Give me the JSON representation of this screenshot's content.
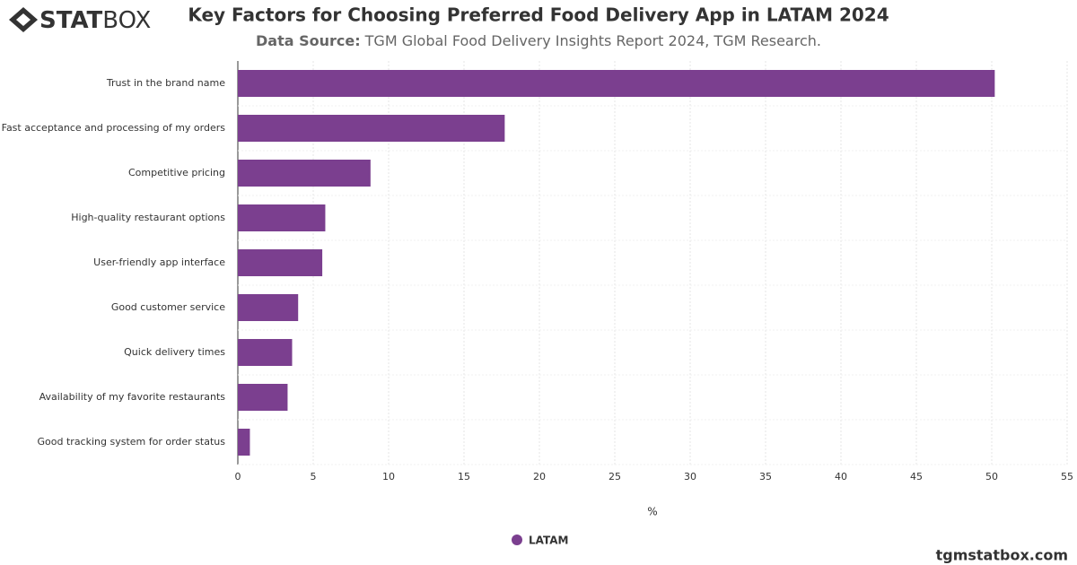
{
  "brand": {
    "bold": "STAT",
    "light": "BOX"
  },
  "footer": "tgmstatbox.com",
  "chart_data": {
    "type": "bar",
    "orientation": "horizontal",
    "title": "Key Factors for Choosing Preferred Food Delivery App in LATAM 2024",
    "source_label": "Data Source:",
    "source": "TGM Global Food Delivery Insights Report 2024, TGM Research.",
    "x_label": "%",
    "categories": [
      "Trust in the brand name",
      "Fast acceptance and processing of my orders",
      "Competitive pricing",
      "High-quality restaurant options",
      "User-friendly app interface",
      "Good customer service",
      "Quick delivery times",
      "Availability of my favorite restaurants",
      "Good tracking system for order status"
    ],
    "series": [
      {
        "name": "LATAM",
        "color": "#7b3f8f",
        "values": [
          50.2,
          17.7,
          8.8,
          5.8,
          5.6,
          4.0,
          3.6,
          3.3,
          0.8
        ]
      }
    ],
    "xlim": [
      0,
      55
    ],
    "xticks": [
      0,
      5,
      10,
      15,
      20,
      25,
      30,
      35,
      40,
      45,
      50,
      55
    ],
    "grid": true
  }
}
